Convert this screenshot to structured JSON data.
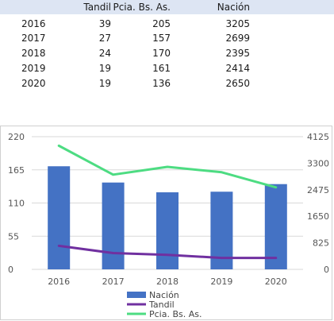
{
  "table": {
    "headers": [
      "",
      "Tandil",
      "Pcia. Bs. As.",
      "Nación"
    ],
    "rows": [
      [
        "2016",
        "39",
        "205",
        "3205"
      ],
      [
        "2017",
        "27",
        "157",
        "2699"
      ],
      [
        "2018",
        "24",
        "170",
        "2395"
      ],
      [
        "2019",
        "19",
        "161",
        "2414"
      ],
      [
        "2020",
        "19",
        "136",
        "2650"
      ]
    ]
  },
  "chart_data": {
    "type": "bar+line",
    "categories": [
      "2016",
      "2017",
      "2018",
      "2019",
      "2020"
    ],
    "y_left": {
      "ticks": [
        "0",
        "55",
        "110",
        "165",
        "220"
      ],
      "range": [
        0,
        220
      ]
    },
    "y_right": {
      "ticks": [
        "0",
        "825",
        "1650",
        "2475",
        "3300",
        "4125"
      ],
      "range": [
        0,
        4125
      ]
    },
    "series": [
      {
        "name": "Nación",
        "kind": "bar",
        "axis": "right",
        "color": "#4472c4",
        "values": [
          3205,
          2699,
          2395,
          2414,
          2650
        ]
      },
      {
        "name": "Tandil",
        "kind": "line",
        "axis": "left",
        "color": "#7030a0",
        "values": [
          39,
          27,
          24,
          19,
          19
        ]
      },
      {
        "name": "Pcia. Bs. As.",
        "kind": "line",
        "axis": "left",
        "color": "#4ddc82",
        "values": [
          205,
          157,
          170,
          161,
          136
        ]
      }
    ],
    "legend_position": "bottom"
  }
}
